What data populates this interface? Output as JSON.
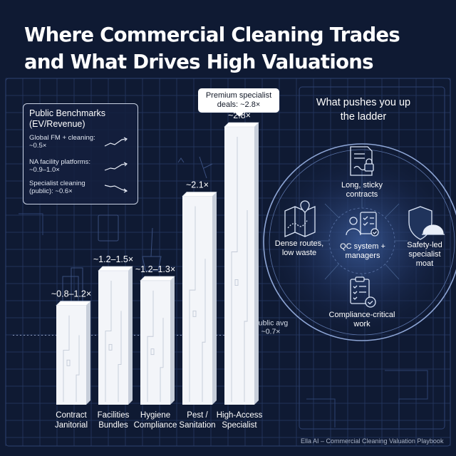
{
  "title": "Where Commercial Cleaning Trades and What Drives High Valuations",
  "chart_data": {
    "type": "bar",
    "categories": [
      "Contract Janitorial",
      "Facilities Bundles",
      "Hygiene Compliance",
      "Pest / Sanitation",
      "High-Access Specialist"
    ],
    "category_lines": [
      [
        "Contract",
        "Janitorial"
      ],
      [
        "Facilities",
        "Bundles"
      ],
      [
        "Hygiene",
        "Compliance"
      ],
      [
        "Pest /",
        "Sanitation"
      ],
      [
        "High-Access",
        "Specialist"
      ]
    ],
    "values": [
      1.0,
      1.35,
      1.25,
      2.1,
      2.8
    ],
    "value_labels": [
      "~0.8–1.2×",
      "~1.2–1.5×",
      "~1.2–1.3×",
      "~2.1×",
      "~2.8×"
    ],
    "ylim": [
      0,
      3.1
    ],
    "reference_line": {
      "value": 0.7,
      "label_lines": [
        "Public avg",
        "~0.7×"
      ]
    },
    "callout_lines": [
      "Premium specialist",
      "deals: ~2.8×"
    ],
    "colors": {
      "bar": "#f3f5f9",
      "bar_side": "#c7ceda",
      "bar_top": "#ffffff"
    }
  },
  "benchmarks": {
    "title": "Public Benchmarks (EV/Revenue)",
    "items": [
      {
        "text": "Global FM + cleaning: ~0.5×",
        "trend": "up"
      },
      {
        "text": "NA facility platforms: ~0.9–1.0×",
        "trend": "up"
      },
      {
        "text": "Specialist cleaning (public): ~0.6×",
        "trend": "down"
      }
    ]
  },
  "drivers": {
    "title": "What pushes you up the ladder",
    "center_label": "QC system + managers",
    "nodes": [
      {
        "label": "Long, sticky contracts",
        "icon": "contract-lock-icon"
      },
      {
        "label": "Dense routes, low waste",
        "icon": "route-map-icon"
      },
      {
        "label": "Safety-led specialist moat",
        "icon": "shield-helmet-icon"
      },
      {
        "label": "Compliance-critical work",
        "icon": "checklist-icon"
      }
    ],
    "center_icon": "manager-checklist-icon"
  },
  "footer": "Ella AI – Commercial Cleaning Valuation Playbook",
  "colors": {
    "background": "#0f1a33",
    "grid": "#23345a",
    "accent_ring": "#8ea6d6"
  }
}
